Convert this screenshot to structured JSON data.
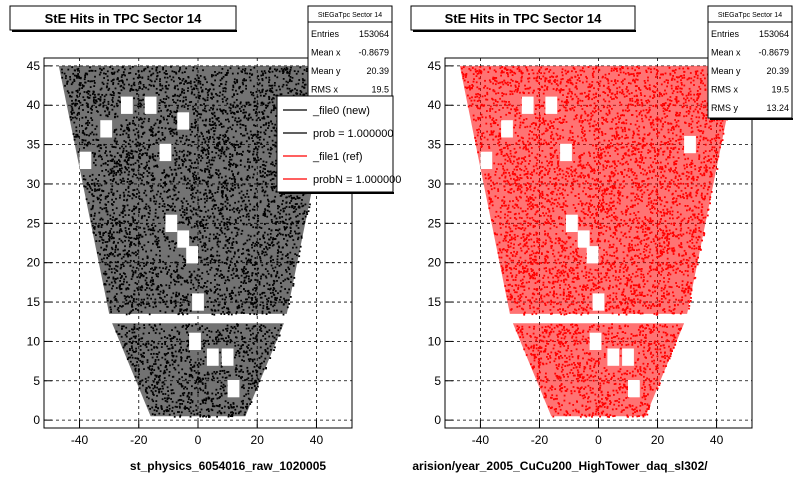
{
  "colors": {
    "left_fill": "#000000",
    "right_fill": "#ff0000",
    "frame": "#000000",
    "grid": "#000000",
    "background": "#ffffff",
    "new_line": "#000000",
    "ref_line": "#ff0000"
  },
  "footer": {
    "left_caption": "st_physics_6054016_raw_1020005",
    "right_caption": "arision/year_2005_CuCu200_HighTower_daq_sl302/"
  },
  "chart_data": [
    {
      "type": "scatter",
      "style": "dense 2D hit map (TPC sector shape), black points",
      "title": "StE Hits in TPC Sector 14",
      "xlabel": "",
      "ylabel": "",
      "xlim": [
        -52,
        52
      ],
      "ylim": [
        -1,
        46
      ],
      "xticks": [
        -40,
        -20,
        0,
        20,
        40
      ],
      "yticks": [
        0,
        5,
        10,
        15,
        20,
        25,
        30,
        35,
        40,
        45
      ],
      "grid": true,
      "stats": {
        "name": "StEGaTpc Sector 14",
        "rows": [
          {
            "label": "Entries",
            "value": "153064"
          },
          {
            "label": "Mean x",
            "value": "-0.8679"
          },
          {
            "label": "Mean y",
            "value": "20.39"
          },
          {
            "label": "RMS x",
            "value": "19.5"
          }
        ]
      },
      "legend": {
        "placement": "top-right",
        "entries": [
          {
            "label": "_file0 (new)",
            "color": "#000000"
          },
          {
            "label": "prob = 1.000000",
            "color": "#000000"
          },
          {
            "label": "_file1 (ref)",
            "color": "#ff0000"
          },
          {
            "label": "probN = 1.000000",
            "color": "#ff0000"
          }
        ]
      },
      "region": {
        "outer_top_y": 45,
        "outer_top_half_width": 47,
        "outer_bottom_y": 13.5,
        "outer_bottom_half_width": 30,
        "gap_y": [
          12.3,
          13.0
        ],
        "inner_top_y": 12.3,
        "inner_top_half_width": 29,
        "inner_bottom_y": 0.5,
        "inner_bottom_half_width": 16
      },
      "holes": [
        [
          -31,
          37
        ],
        [
          -38,
          33
        ],
        [
          -24,
          40
        ],
        [
          -16,
          40
        ],
        [
          -11,
          34
        ],
        [
          -9,
          25
        ],
        [
          -5,
          23
        ],
        [
          -2,
          21
        ],
        [
          0,
          15
        ],
        [
          -1,
          10
        ],
        [
          5,
          8
        ],
        [
          10,
          8
        ],
        [
          12,
          4
        ],
        [
          -5,
          38
        ]
      ]
    },
    {
      "type": "scatter",
      "style": "dense 2D hit map (TPC sector shape), red points",
      "title": "StE Hits in TPC Sector 14",
      "xlabel": "",
      "ylabel": "",
      "xlim": [
        -52,
        52
      ],
      "ylim": [
        -1,
        46
      ],
      "xticks": [
        -40,
        -20,
        0,
        20,
        40
      ],
      "yticks": [
        0,
        5,
        10,
        15,
        20,
        25,
        30,
        35,
        40,
        45
      ],
      "grid": true,
      "stats": {
        "name": "StEGaTpc Sector 14",
        "rows": [
          {
            "label": "Entries",
            "value": "153064"
          },
          {
            "label": "Mean x",
            "value": "-0.8679"
          },
          {
            "label": "Mean y",
            "value": "20.39"
          },
          {
            "label": "RMS x",
            "value": "19.5"
          },
          {
            "label": "RMS y",
            "value": "13.24"
          }
        ]
      },
      "region": {
        "outer_top_y": 45,
        "outer_top_half_width": 47,
        "outer_bottom_y": 13.5,
        "outer_bottom_half_width": 30,
        "gap_y": [
          12.3,
          13.0
        ],
        "inner_top_y": 12.3,
        "inner_top_half_width": 29,
        "inner_bottom_y": 0.5,
        "inner_bottom_half_width": 16
      },
      "holes": [
        [
          -31,
          37
        ],
        [
          -38,
          33
        ],
        [
          -24,
          40
        ],
        [
          -16,
          40
        ],
        [
          -11,
          34
        ],
        [
          -9,
          25
        ],
        [
          -5,
          23
        ],
        [
          -2,
          21
        ],
        [
          0,
          15
        ],
        [
          -1,
          10
        ],
        [
          5,
          8
        ],
        [
          10,
          8
        ],
        [
          12,
          4
        ],
        [
          31,
          35
        ]
      ]
    }
  ]
}
